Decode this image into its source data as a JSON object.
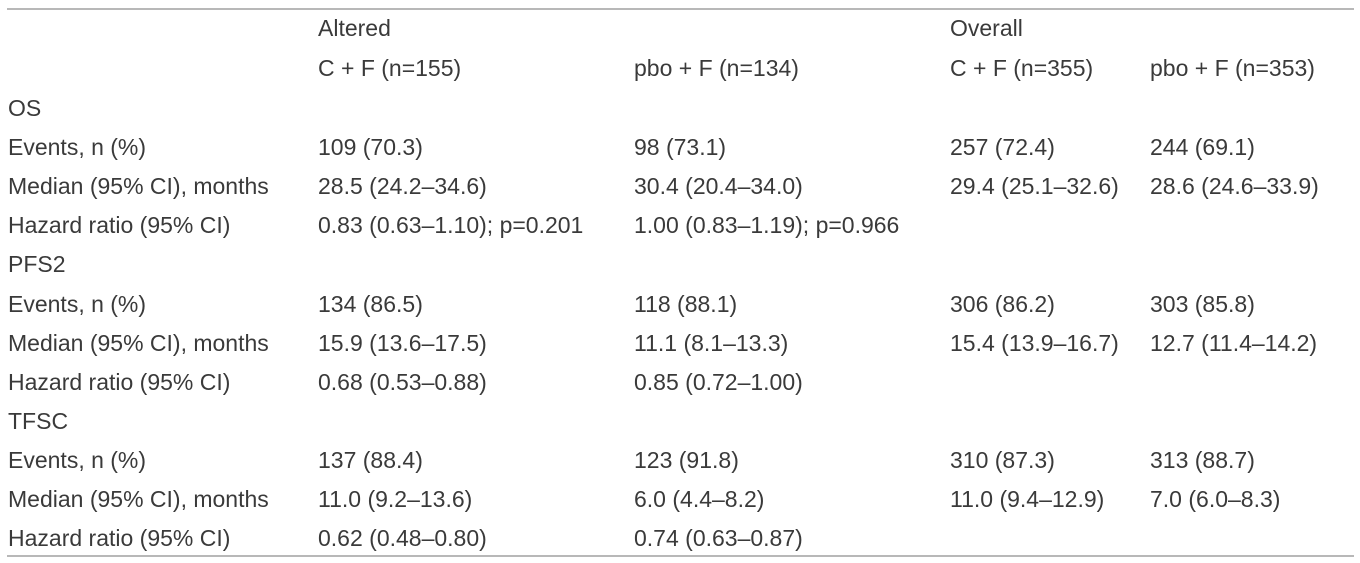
{
  "table": {
    "group_headers": {
      "altered": "Altered",
      "overall": "Overall"
    },
    "column_headers": [
      "",
      "C + F (n=155)",
      "pbo + F (n=134)",
      "C + F (n=355)",
      "pbo + F (n=353)"
    ],
    "rows": [
      {
        "type": "section",
        "cells": [
          "OS",
          "",
          "",
          "",
          ""
        ]
      },
      {
        "type": "data",
        "cells": [
          "Events, n (%)",
          "109 (70.3)",
          "98 (73.1)",
          "257 (72.4)",
          "244 (69.1)"
        ]
      },
      {
        "type": "data",
        "cells": [
          "Median (95% CI), months",
          "28.5 (24.2–34.6)",
          "30.4 (20.4–34.0)",
          "29.4 (25.1–32.6)",
          "28.6 (24.6–33.9)"
        ]
      },
      {
        "type": "data",
        "cells": [
          "Hazard ratio (95% CI)",
          "0.83 (0.63–1.10); p=0.201",
          "1.00 (0.83–1.19); p=0.966",
          "",
          ""
        ]
      },
      {
        "type": "section",
        "cells": [
          "PFS2",
          "",
          "",
          "",
          ""
        ]
      },
      {
        "type": "data",
        "cells": [
          "Events, n (%)",
          "134 (86.5)",
          "118 (88.1)",
          "306 (86.2)",
          "303 (85.8)"
        ]
      },
      {
        "type": "data",
        "cells": [
          "Median (95% CI), months",
          "15.9 (13.6–17.5)",
          "11.1 (8.1–13.3)",
          "15.4 (13.9–16.7)",
          "12.7 (11.4–14.2)"
        ]
      },
      {
        "type": "data",
        "cells": [
          "Hazard ratio (95% CI)",
          "0.68 (0.53–0.88)",
          "0.85 (0.72–1.00)",
          "",
          ""
        ]
      },
      {
        "type": "section",
        "cells": [
          "TFSC",
          "",
          "",
          "",
          ""
        ]
      },
      {
        "type": "data",
        "cells": [
          "Events, n (%)",
          "137 (88.4)",
          "123 (91.8)",
          "310 (87.3)",
          "313 (88.7)"
        ]
      },
      {
        "type": "data",
        "cells": [
          "Median (95% CI), months",
          "11.0 (9.2–13.6)",
          "6.0 (4.4–8.2)",
          "11.0 (9.4–12.9)",
          "7.0 (6.0–8.3)"
        ]
      },
      {
        "type": "data",
        "cells": [
          "Hazard ratio (95% CI)",
          "0.62 (0.48–0.80)",
          "0.74 (0.63–0.87)",
          "",
          ""
        ]
      }
    ]
  }
}
